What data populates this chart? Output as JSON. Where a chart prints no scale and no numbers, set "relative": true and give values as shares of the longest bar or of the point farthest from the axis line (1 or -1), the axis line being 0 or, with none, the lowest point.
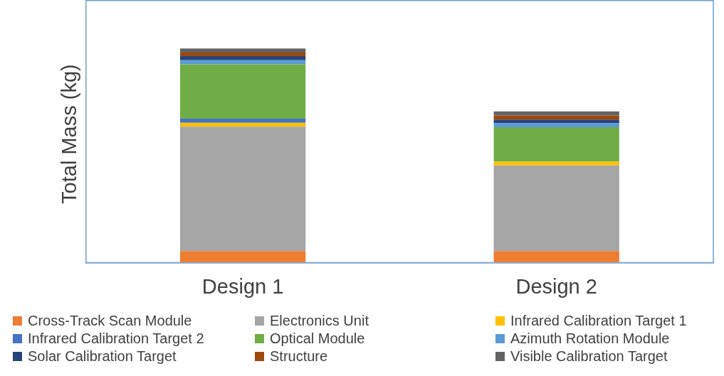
{
  "chart_data": {
    "type": "bar",
    "stacked": true,
    "relative": true,
    "ylabel": "Total Mass (kg)",
    "grid": false,
    "legend": "bottom",
    "categories": [
      "Design 1",
      "Design 2"
    ],
    "series": [
      {
        "name": "Cross-Track Scan Module",
        "color": "#ed7d31",
        "values": [
          0.053,
          0.053
        ]
      },
      {
        "name": "Electronics Unit",
        "color": "#a5a5a5",
        "values": [
          0.581,
          0.4
        ]
      },
      {
        "name": "Infrared Calibration Target 1",
        "color": "#ffc000",
        "values": [
          0.019,
          0.018
        ]
      },
      {
        "name": "Infrared Calibration Target 2",
        "color": "#4472c4",
        "values": [
          0.019,
          null
        ]
      },
      {
        "name": "Optical Module",
        "color": "#70ad47",
        "values": [
          0.254,
          0.161
        ]
      },
      {
        "name": "Azimuth Rotation Module",
        "color": "#5b9bd5",
        "values": [
          0.019,
          0.019
        ]
      },
      {
        "name": "Solar Calibration Target",
        "color": "#264478",
        "values": [
          0.019,
          0.017
        ]
      },
      {
        "name": "Structure",
        "color": "#9e480e",
        "values": [
          0.017,
          0.019
        ]
      },
      {
        "name": "Visible Calibration Target",
        "color": "#636363",
        "values": [
          0.019,
          0.019
        ]
      }
    ]
  }
}
